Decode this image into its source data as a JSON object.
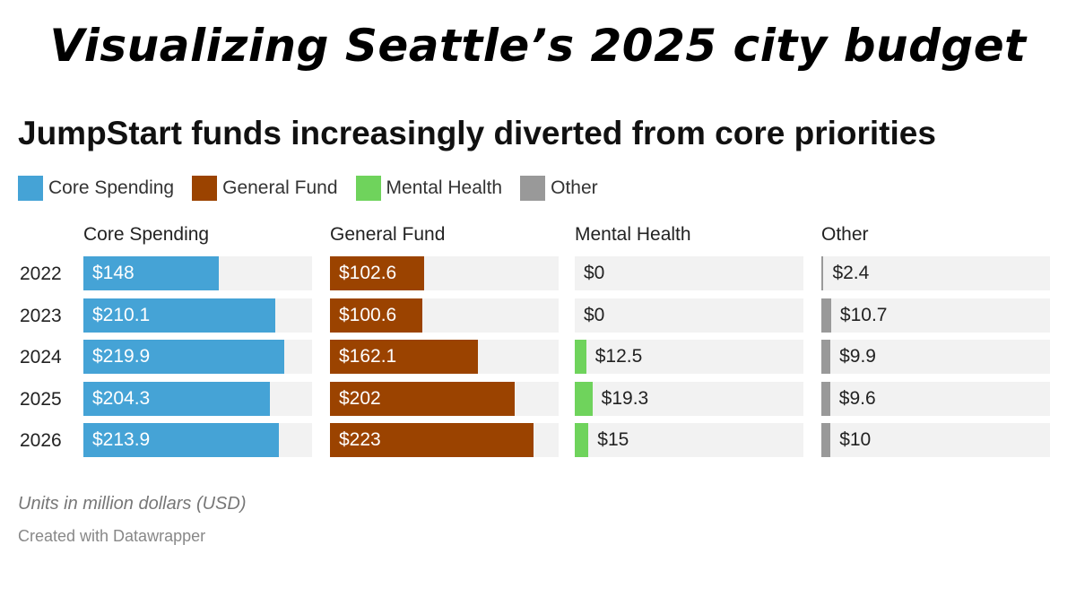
{
  "title": "Visualizing Seattle’s 2025 city budget",
  "subtitle": "JumpStart funds increasingly diverted from core priorities",
  "note": "Units in million dollars (USD)",
  "credit": "Created with Datawrapper",
  "chart_data": {
    "type": "bar",
    "title": "JumpStart funds increasingly diverted from core priorities",
    "categories": [
      "2022",
      "2023",
      "2024",
      "2025",
      "2026"
    ],
    "legend_position": "top-left",
    "xlim": [
      0,
      250
    ],
    "series": [
      {
        "name": "Core Spending",
        "color": "#45a3d6",
        "values": [
          148,
          210.1,
          219.9,
          204.3,
          213.9
        ],
        "labels": [
          "$148",
          "$210.1",
          "$219.9",
          "$204.3",
          "$213.9"
        ]
      },
      {
        "name": "General Fund",
        "color": "#9b4300",
        "values": [
          102.6,
          100.6,
          162.1,
          202,
          223
        ],
        "labels": [
          "$102.6",
          "$100.6",
          "$162.1",
          "$202",
          "$223"
        ]
      },
      {
        "name": "Mental Health",
        "color": "#6fd35c",
        "values": [
          0,
          0,
          12.5,
          19.3,
          15
        ],
        "labels": [
          "$0",
          "$0",
          "$12.5",
          "$19.3",
          "$15"
        ]
      },
      {
        "name": "Other",
        "color": "#999999",
        "values": [
          2.4,
          10.7,
          9.9,
          9.6,
          10
        ],
        "labels": [
          "$2.4",
          "$10.7",
          "$9.9",
          "$9.6",
          "$10"
        ]
      }
    ]
  }
}
